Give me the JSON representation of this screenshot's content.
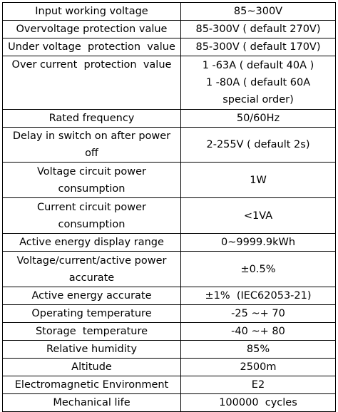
{
  "table": {
    "rows": [
      [
        "Input working voltage",
        "85~300V"
      ],
      [
        "Overvoltage protection value",
        "85-300V ( default 270V)"
      ],
      [
        "Under voltage  protection  value",
        "85-300V ( default 170V)"
      ],
      [
        "Over current  protection  value",
        [
          "1 -63A ( default 40A )",
          "1 -80A ( default 60A",
          "special order)"
        ]
      ],
      [
        "Rated frequency",
        "50/60Hz"
      ],
      [
        "Delay in switch on after power off",
        "2-255V ( default 2s)"
      ],
      [
        "Voltage circuit power consumption",
        "1W"
      ],
      [
        "Current circuit power consumption",
        "<1VA"
      ],
      [
        "Active energy display range",
        "0~9999.9kWh"
      ],
      [
        "Voltage/current/active power accurate",
        "±0.5%"
      ],
      [
        "Active energy accurate",
        "±1%  (IEC62053-21)"
      ],
      [
        "Operating temperature",
        "-25 ~+ 70"
      ],
      [
        "Storage  temperature",
        "-40 ~+ 80"
      ],
      [
        "Relative humidity",
        "85%"
      ],
      [
        "Altitude",
        "2500m"
      ],
      [
        "Electromagnetic Environment",
        "E2"
      ],
      [
        "Mechanical life",
        "100000  cycles"
      ]
    ]
  }
}
